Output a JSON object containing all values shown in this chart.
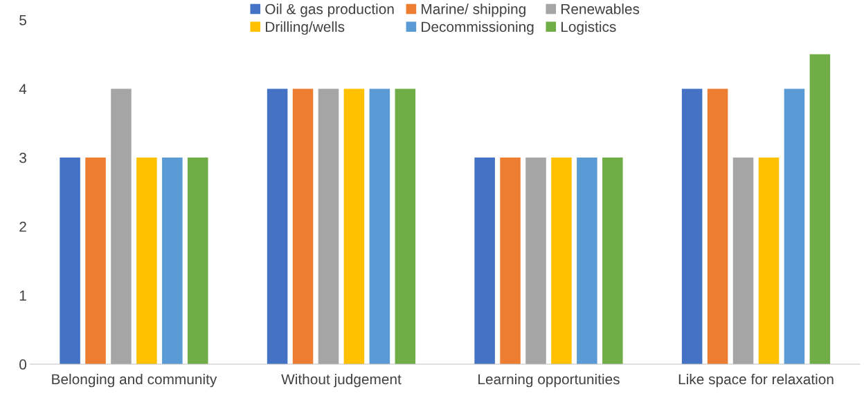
{
  "chart_data": {
    "type": "bar",
    "categories": [
      "Belonging and community",
      "Without judgement",
      "Learning opportunities",
      "Like space for relaxation"
    ],
    "series": [
      {
        "name": "Oil & gas production",
        "color": "#4472c4",
        "values": [
          3,
          4,
          3,
          4
        ]
      },
      {
        "name": "Marine/ shipping",
        "color": "#ed7d31",
        "values": [
          3,
          4,
          3,
          4
        ]
      },
      {
        "name": "Renewables",
        "color": "#a5a5a5",
        "values": [
          4,
          4,
          3,
          3
        ]
      },
      {
        "name": "Drilling/wells",
        "color": "#ffc000",
        "values": [
          3,
          4,
          3,
          3
        ]
      },
      {
        "name": "Decommissioning",
        "color": "#5b9bd5",
        "values": [
          3,
          4,
          3,
          4
        ]
      },
      {
        "name": "Logistics",
        "color": "#70ad47",
        "values": [
          3,
          4,
          3,
          4.5
        ]
      }
    ],
    "ylim": [
      0,
      5
    ],
    "yticks": [
      0,
      1,
      2,
      3,
      4,
      5
    ],
    "grid": false,
    "legend": "top"
  }
}
